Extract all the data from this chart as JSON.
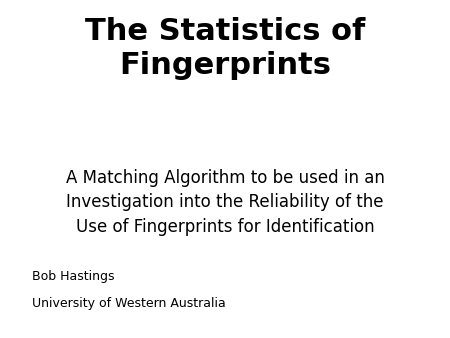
{
  "title_line1": "The Statistics of",
  "title_line2": "Fingerprints",
  "subtitle": "A Matching Algorithm to be used in an\nInvestigation into the Reliability of the\nUse of Fingerprints for Identification",
  "author": "Bob Hastings",
  "institution": "University of Western Australia",
  "background_color": "#ffffff",
  "title_color": "#000000",
  "subtitle_color": "#000000",
  "author_color": "#000000",
  "title_fontsize": 22,
  "subtitle_fontsize": 12,
  "author_fontsize": 9,
  "institution_fontsize": 9
}
